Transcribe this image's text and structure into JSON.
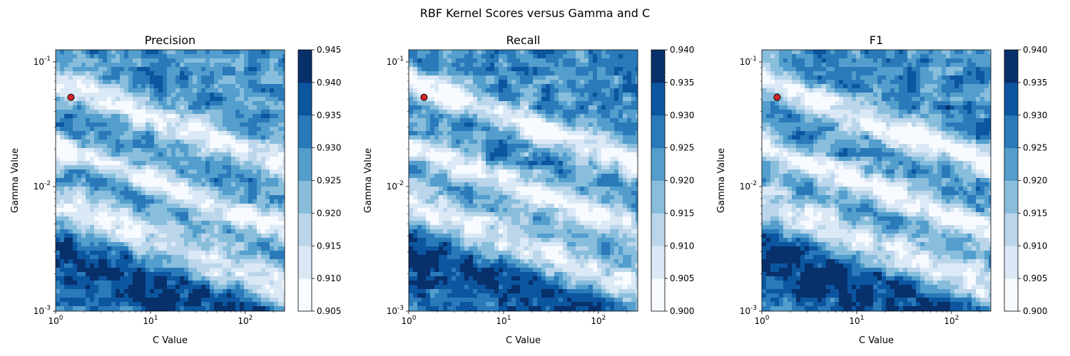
{
  "figure": {
    "title": "RBF Kernel Scores versus Gamma and C"
  },
  "chart_data": [
    {
      "type": "heatmap",
      "subtype": "filled-contour",
      "title": "Precision",
      "xlabel": "C Value",
      "ylabel": "Gamma Value",
      "xscale": "log",
      "yscale": "log",
      "xlim": [
        1,
        260
      ],
      "ylim": [
        0.001,
        0.125
      ],
      "x_ticks": [
        {
          "value": 1,
          "label": "10^0"
        },
        {
          "value": 10,
          "label": "10^1"
        },
        {
          "value": 100,
          "label": "10^2"
        }
      ],
      "y_ticks": [
        {
          "value": 0.001,
          "label": "10^-3"
        },
        {
          "value": 0.01,
          "label": "10^-2"
        },
        {
          "value": 0.1,
          "label": "10^-1"
        }
      ],
      "colormap": "Blues",
      "colorbar_levels": [
        0.905,
        0.91,
        0.915,
        0.92,
        0.925,
        0.93,
        0.935,
        0.94,
        0.945
      ],
      "colorbar_labels": [
        "0.905",
        "0.910",
        "0.915",
        "0.920",
        "0.925",
        "0.930",
        "0.935",
        "0.940",
        "0.945"
      ],
      "best_point": {
        "C": 1.45,
        "gamma": 0.052,
        "color": "#d62728"
      }
    },
    {
      "type": "heatmap",
      "subtype": "filled-contour",
      "title": "Recall",
      "xlabel": "C Value",
      "ylabel": "Gamma Value",
      "xscale": "log",
      "yscale": "log",
      "xlim": [
        1,
        260
      ],
      "ylim": [
        0.001,
        0.125
      ],
      "x_ticks": [
        {
          "value": 1,
          "label": "10^0"
        },
        {
          "value": 10,
          "label": "10^1"
        },
        {
          "value": 100,
          "label": "10^2"
        }
      ],
      "y_ticks": [
        {
          "value": 0.001,
          "label": "10^-3"
        },
        {
          "value": 0.01,
          "label": "10^-2"
        },
        {
          "value": 0.1,
          "label": "10^-1"
        }
      ],
      "colormap": "Blues",
      "colorbar_levels": [
        0.9,
        0.905,
        0.91,
        0.915,
        0.92,
        0.925,
        0.93,
        0.935,
        0.94
      ],
      "colorbar_labels": [
        "0.900",
        "0.905",
        "0.910",
        "0.915",
        "0.920",
        "0.925",
        "0.930",
        "0.935",
        "0.940"
      ],
      "best_point": {
        "C": 1.45,
        "gamma": 0.052,
        "color": "#d62728"
      }
    },
    {
      "type": "heatmap",
      "subtype": "filled-contour",
      "title": "F1",
      "xlabel": "C Value",
      "ylabel": "Gamma Value",
      "xscale": "log",
      "yscale": "log",
      "xlim": [
        1,
        260
      ],
      "ylim": [
        0.001,
        0.125
      ],
      "x_ticks": [
        {
          "value": 1,
          "label": "10^0"
        },
        {
          "value": 10,
          "label": "10^1"
        },
        {
          "value": 100,
          "label": "10^2"
        }
      ],
      "y_ticks": [
        {
          "value": 0.001,
          "label": "10^-3"
        },
        {
          "value": 0.01,
          "label": "10^-2"
        },
        {
          "value": 0.1,
          "label": "10^-1"
        }
      ],
      "colormap": "Blues",
      "colorbar_levels": [
        0.9,
        0.905,
        0.91,
        0.915,
        0.92,
        0.925,
        0.93,
        0.935,
        0.94
      ],
      "colorbar_labels": [
        "0.900",
        "0.905",
        "0.910",
        "0.915",
        "0.920",
        "0.925",
        "0.930",
        "0.935",
        "0.940"
      ],
      "best_point": {
        "C": 1.45,
        "gamma": 0.052,
        "color": "#d62728"
      }
    }
  ]
}
